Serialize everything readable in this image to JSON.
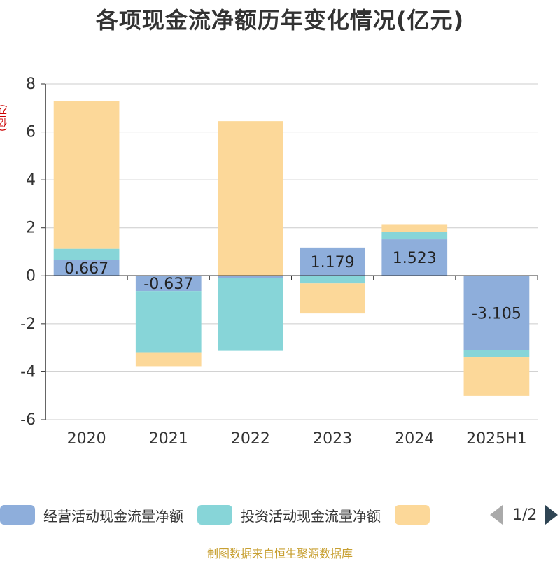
{
  "title": "各项现金流净额历年变化情况(亿元)",
  "unit_label": "(亿元)",
  "source": "制图数据来自恒生聚源数据库",
  "legend": {
    "pager_text": "1/2"
  },
  "chart_data": {
    "type": "bar",
    "stacked": true,
    "title": "各项现金流净额历年变化情况(亿元)",
    "ylabel": "(亿元)",
    "ylim": [
      -6,
      8
    ],
    "yticks": [
      8,
      6,
      4,
      2,
      0,
      -2,
      -4,
      -6
    ],
    "grid": true,
    "legend_position": "bottom",
    "categories": [
      "2020",
      "2021",
      "2022",
      "2023",
      "2024",
      "2025H1"
    ],
    "series": [
      {
        "name": "经营活动现金流量净额",
        "color": "#8eaedb",
        "values": [
          0.667,
          -0.637,
          -0.08,
          1.179,
          1.523,
          -3.105
        ],
        "labels": [
          "0.667",
          "-0.637",
          "",
          "1.179",
          "1.523",
          "-3.105"
        ]
      },
      {
        "name": "投资活动现金流量净额",
        "color": "#87d5d8",
        "values": [
          0.46,
          -2.55,
          -3.05,
          -0.32,
          0.3,
          -0.3
        ]
      },
      {
        "name": "",
        "color": "#fcd899",
        "values": [
          6.15,
          -0.58,
          6.45,
          -1.25,
          0.33,
          -1.6
        ]
      }
    ]
  }
}
